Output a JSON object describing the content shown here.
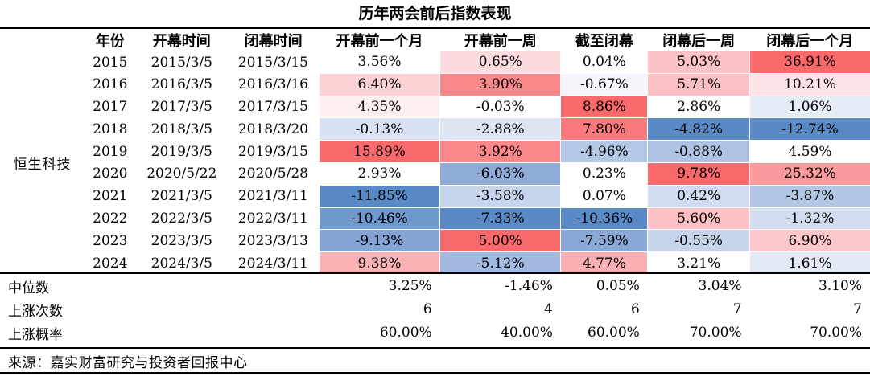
{
  "title": "历年两会前后指数表现",
  "headers": {
    "year": "年份",
    "open": "开幕时间",
    "close": "闭幕时间",
    "before_month": "开幕前一个月",
    "before_week": "开幕前一周",
    "to_close": "截至闭幕",
    "after_week": "闭幕后一周",
    "after_month": "闭幕后一个月"
  },
  "index_name": "恒生科技",
  "rows": [
    {
      "year": "2015",
      "open": "2015/3/5",
      "close": "2015/3/15",
      "v": [
        "3.56%",
        "0.65%",
        "0.04%",
        "5.03%",
        "36.91%"
      ],
      "bg": [
        "#ffffff",
        "#fddcdf",
        "#ffffff",
        "#fbc3c6",
        "#f8696b"
      ]
    },
    {
      "year": "2016",
      "open": "2016/3/5",
      "close": "2016/3/16",
      "v": [
        "6.40%",
        "3.90%",
        "-0.67%",
        "5.71%",
        "10.21%"
      ],
      "bg": [
        "#fcd1d4",
        "#f9888a",
        "#f4f6fb",
        "#fbc0c3",
        "#fde3e6"
      ]
    },
    {
      "year": "2017",
      "open": "2017/3/5",
      "close": "2017/3/15",
      "v": [
        "4.35%",
        "-0.03%",
        "8.86%",
        "2.86%",
        "1.06%"
      ],
      "bg": [
        "#fdeef0",
        "#ffffff",
        "#f86a6c",
        "#ffffff",
        "#e6ecf6"
      ]
    },
    {
      "year": "2018",
      "open": "2018/3/5",
      "close": "2018/3/20",
      "v": [
        "-0.13%",
        "-2.88%",
        "7.80%",
        "-4.82%",
        "-12.74%"
      ],
      "bg": [
        "#d8e2f2",
        "#dde5f3",
        "#f97a7c",
        "#5a8ac6",
        "#5a8ac6"
      ]
    },
    {
      "year": "2019",
      "open": "2019/3/5",
      "close": "2019/3/15",
      "v": [
        "15.89%",
        "3.92%",
        "-4.96%",
        "-0.88%",
        "4.59%"
      ],
      "bg": [
        "#f8696b",
        "#f9888a",
        "#b4c8e6",
        "#aec3e3",
        "#ffffff"
      ]
    },
    {
      "year": "2020",
      "open": "2020/5/22",
      "close": "2020/5/28",
      "v": [
        "2.93%",
        "-6.03%",
        "0.23%",
        "9.78%",
        "25.32%"
      ],
      "bg": [
        "#ffffff",
        "#8fabd8",
        "#ffffff",
        "#f8696b",
        "#f99a9c"
      ]
    },
    {
      "year": "2021",
      "open": "2021/3/5",
      "close": "2021/3/11",
      "v": [
        "-11.85%",
        "-3.58%",
        "0.07%",
        "0.42%",
        "-3.87%"
      ],
      "bg": [
        "#5a8ac6",
        "#c7d5ec",
        "#ffffff",
        "#d0dcf0",
        "#b3c7e5"
      ]
    },
    {
      "year": "2022",
      "open": "2022/3/5",
      "close": "2022/3/11",
      "v": [
        "-10.46%",
        "-7.33%",
        "-10.36%",
        "5.60%",
        "-1.32%"
      ],
      "bg": [
        "#6f99cc",
        "#5a8ac6",
        "#5a8ac6",
        "#fbc0c3",
        "#d2ddf0"
      ]
    },
    {
      "year": "2023",
      "open": "2023/3/5",
      "close": "2023/3/13",
      "v": [
        "-9.13%",
        "5.00%",
        "-7.59%",
        "-0.55%",
        "6.90%"
      ],
      "bg": [
        "#85a4d4",
        "#f8696b",
        "#8aa8d6",
        "#c6d4eb",
        "#fbc7ca"
      ]
    },
    {
      "year": "2024",
      "open": "2024/3/5",
      "close": "2024/3/11",
      "v": [
        "9.38%",
        "-5.12%",
        "4.77%",
        "3.21%",
        "1.61%"
      ],
      "bg": [
        "#fab2b5",
        "#a2bae0",
        "#fab0b3",
        "#ffffff",
        "#e2e9f5"
      ]
    }
  ],
  "summary": [
    {
      "label": "中位数",
      "v": [
        "3.25%",
        "-1.46%",
        "0.05%",
        "3.04%",
        "3.10%"
      ]
    },
    {
      "label": "上涨次数",
      "v": [
        "6",
        "4",
        "6",
        "7",
        "7"
      ]
    },
    {
      "label": "上涨概率",
      "v": [
        "60.00%",
        "40.00%",
        "60.00%",
        "70.00%",
        "70.00%"
      ]
    }
  ],
  "source": "来源：嘉实财富研究与投资者回报中心"
}
